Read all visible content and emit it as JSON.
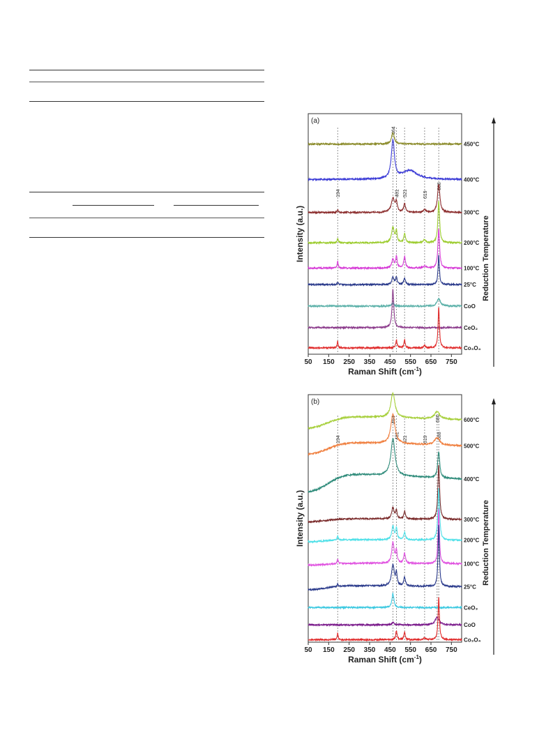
{
  "chart_data": [
    {
      "type": "line",
      "panel_label": "(a)",
      "xlabel": "Raman Shift (cm",
      "xlabel_sup": "-1",
      "xlabel_end": ")",
      "ylabel": "Intensity (a.u.)",
      "side_label": "Reduction Temperature",
      "xlim": [
        50,
        800
      ],
      "xticks": [
        "50",
        "150",
        "250",
        "350",
        "450",
        "550",
        "650",
        "750"
      ],
      "xtick_values": [
        50,
        150,
        250,
        350,
        450,
        550,
        650,
        750
      ],
      "ref_lines": [
        {
          "label": "194",
          "x": 194
        },
        {
          "label": "464",
          "x": 464
        },
        {
          "label": "481",
          "x": 481
        },
        {
          "label": "521",
          "x": 521
        },
        {
          "label": "619",
          "x": 619
        },
        {
          "label": "688",
          "x": 688
        }
      ],
      "series": [
        {
          "name": "450°C",
          "color": "#8b8b2a",
          "base": 8.3,
          "peaks": [
            [
              464,
              0.45,
              8
            ]
          ],
          "slope": 0.0
        },
        {
          "name": "400°C",
          "color": "#3a3ad6",
          "base": 6.9,
          "peaks": [
            [
              464,
              1.5,
              9
            ],
            [
              545,
              0.35,
              45
            ]
          ],
          "slope": 0.0
        },
        {
          "name": "300°C",
          "color": "#8b2c2c",
          "base": 5.6,
          "peaks": [
            [
              194,
              0.12,
              3
            ],
            [
              464,
              0.55,
              10
            ],
            [
              481,
              0.35,
              5
            ],
            [
              521,
              0.35,
              5
            ],
            [
              619,
              0.12,
              6
            ],
            [
              688,
              1.1,
              7
            ]
          ],
          "slope": 0.0
        },
        {
          "name": "200°C",
          "color": "#9ccc2e",
          "base": 4.4,
          "peaks": [
            [
              194,
              0.18,
              3
            ],
            [
              464,
              0.6,
              8
            ],
            [
              481,
              0.45,
              4
            ],
            [
              521,
              0.35,
              5
            ],
            [
              619,
              0.12,
              6
            ],
            [
              688,
              1.65,
              5
            ]
          ],
          "slope": 0.0
        },
        {
          "name": "100°C",
          "color": "#d63ad6",
          "base": 3.4,
          "peaks": [
            [
              194,
              0.3,
              3
            ],
            [
              464,
              0.35,
              7
            ],
            [
              481,
              0.45,
              4
            ],
            [
              521,
              0.45,
              5
            ],
            [
              619,
              0.1,
              6
            ],
            [
              688,
              1.55,
              5
            ]
          ],
          "slope": 0.0
        },
        {
          "name": "25°C",
          "color": "#2a3a8b",
          "base": 2.75,
          "peaks": [
            [
              194,
              0.1,
              3
            ],
            [
              464,
              0.3,
              6
            ],
            [
              481,
              0.3,
              4
            ],
            [
              521,
              0.25,
              5
            ],
            [
              688,
              1.15,
              4
            ]
          ],
          "slope": 0.0
        },
        {
          "name": "CoO",
          "color": "#5ab0a8",
          "base": 1.9,
          "peaks": [
            [
              464,
              0.12,
              6
            ],
            [
              688,
              0.3,
              10
            ]
          ],
          "slope": 0.0
        },
        {
          "name": "CeO₂",
          "color": "#8b3a8b",
          "base": 1.05,
          "peaks": [
            [
              464,
              1.5,
              5
            ]
          ],
          "slope": 0.0
        },
        {
          "name": "Co₃O₄",
          "color": "#e02a2a",
          "base": 0.25,
          "peaks": [
            [
              194,
              0.25,
              3
            ],
            [
              481,
              0.3,
              4
            ],
            [
              521,
              0.3,
              4
            ],
            [
              619,
              0.1,
              5
            ],
            [
              688,
              1.6,
              4
            ]
          ],
          "slope": 0.0
        }
      ],
      "ylim": [
        0,
        9.5
      ]
    },
    {
      "type": "line",
      "panel_label": "(b)",
      "xlabel": "Raman Shift (cm",
      "xlabel_sup": "-1",
      "xlabel_end": ")",
      "ylabel": "Intensity (a.u.)",
      "side_label": "Reduction Temperature",
      "xlim": [
        50,
        800
      ],
      "xticks": [
        "50",
        "150",
        "250",
        "350",
        "450",
        "550",
        "650",
        "750"
      ],
      "xtick_values": [
        50,
        150,
        250,
        350,
        450,
        550,
        650,
        750
      ],
      "ref_lines": [
        {
          "label": "194",
          "x": 194
        },
        {
          "label": "464",
          "x": 464
        },
        {
          "label": "481",
          "x": 481
        },
        {
          "label": "521",
          "x": 521
        },
        {
          "label": "619",
          "x": 619
        },
        {
          "label": "680",
          "x": 680
        },
        {
          "label": "688",
          "x": 688
        }
      ],
      "series": [
        {
          "name": "600°C",
          "color": "#a6cf3a",
          "base": 8.6,
          "peaks": [
            [
              464,
              1.0,
              12
            ],
            [
              680,
              0.3,
              15
            ]
          ],
          "slope": 0.55
        },
        {
          "name": "500°C",
          "color": "#f08040",
          "base": 7.55,
          "peaks": [
            [
              464,
              1.2,
              12
            ],
            [
              680,
              0.3,
              15
            ]
          ],
          "slope": 0.55
        },
        {
          "name": "400°C",
          "color": "#2e8b7a",
          "base": 6.0,
          "peaks": [
            [
              464,
              1.5,
              12
            ],
            [
              688,
              1.05,
              6
            ]
          ],
          "slope": 0.85
        },
        {
          "name": "300°C",
          "color": "#7a2a2a",
          "base": 4.85,
          "peaks": [
            [
              464,
              0.45,
              7
            ],
            [
              481,
              0.35,
              4
            ],
            [
              521,
              0.3,
              5
            ],
            [
              688,
              2.2,
              5
            ]
          ],
          "slope": 0.15
        },
        {
          "name": "200°C",
          "color": "#4ee0e8",
          "base": 4.05,
          "peaks": [
            [
              194,
              0.2,
              3
            ],
            [
              464,
              0.55,
              7
            ],
            [
              481,
              0.45,
              4
            ],
            [
              521,
              0.3,
              5
            ],
            [
              688,
              2.1,
              5
            ]
          ],
          "slope": 0.1
        },
        {
          "name": "100°C",
          "color": "#e052e0",
          "base": 3.1,
          "peaks": [
            [
              194,
              0.2,
              3
            ],
            [
              464,
              0.85,
              7
            ],
            [
              481,
              0.5,
              4
            ],
            [
              521,
              0.4,
              5
            ],
            [
              688,
              2.2,
              4
            ]
          ],
          "slope": 0.1
        },
        {
          "name": "25°C",
          "color": "#2a3a8b",
          "base": 2.1,
          "peaks": [
            [
              194,
              0.1,
              3
            ],
            [
              464,
              0.85,
              8
            ],
            [
              481,
              0.5,
              4
            ],
            [
              521,
              0.35,
              5
            ],
            [
              688,
              2.5,
              4
            ]
          ],
          "slope": 0.2
        },
        {
          "name": "CeO₃",
          "color": "#3ac8e0",
          "base": 1.4,
          "peaks": [
            [
              464,
              0.55,
              6
            ]
          ],
          "slope": 0.0
        },
        {
          "name": "CoO",
          "color": "#7a1a8b",
          "base": 0.7,
          "peaks": [
            [
              464,
              0.1,
              6
            ],
            [
              680,
              0.3,
              12
            ]
          ],
          "slope": 0.0
        },
        {
          "name": "Co₃O₄",
          "color": "#e02a2a",
          "base": 0.1,
          "peaks": [
            [
              194,
              0.25,
              3
            ],
            [
              481,
              0.35,
              4
            ],
            [
              521,
              0.3,
              4
            ],
            [
              619,
              0.08,
              5
            ],
            [
              688,
              1.7,
              4
            ]
          ],
          "slope": 0.0
        }
      ],
      "ylim": [
        0,
        10
      ]
    }
  ]
}
